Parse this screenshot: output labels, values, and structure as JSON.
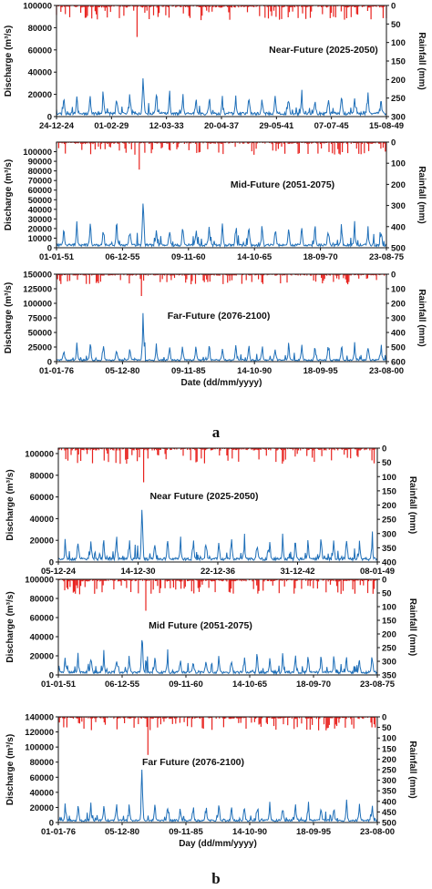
{
  "colors": {
    "discharge": "#1f6fb8",
    "rainfall": "#e8231f",
    "axis": "#111111"
  },
  "panel_labels": {
    "a": "a",
    "b": "b"
  },
  "chart_data": [
    {
      "type": "line",
      "group": "a",
      "title": "Near-Future (2025-2050)",
      "ylabel": "Discharge (m³/s)",
      "y2label": "Rainfall (mm)",
      "xlabel": "",
      "ylim": [
        0,
        100000
      ],
      "y_ticks": [
        0,
        20000,
        40000,
        60000,
        80000,
        100000
      ],
      "y2lim": [
        0,
        300
      ],
      "y2_ticks": [
        0,
        50,
        100,
        150,
        200,
        250,
        300
      ],
      "y2_inverted": true,
      "x_tick_labels": [
        "24-12-24",
        "01-02-29",
        "12-03-33",
        "20-04-37",
        "29-05-41",
        "07-07-45",
        "15-08-49"
      ],
      "peaks": {
        "discharge_peak": 47000,
        "rainfall_peak": 85
      },
      "series": [
        {
          "name": "Discharge",
          "axis": "left",
          "kind": "line",
          "color": "discharge",
          "n_years": 25,
          "seed": 11,
          "base_peak": 26000,
          "max_peak": 47000
        },
        {
          "name": "Rainfall",
          "axis": "right",
          "kind": "hyetograph",
          "color": "rainfall",
          "n_years": 25,
          "seed": 21,
          "base_peak": 40,
          "max_peak": 85
        }
      ]
    },
    {
      "type": "line",
      "group": "a",
      "title": "Mid-Future (2051-2075)",
      "ylabel": "Discharge (m³/s)",
      "y2label": "Rainfall (mm)",
      "xlabel": "",
      "ylim": [
        0,
        110000
      ],
      "y_ticks": [
        0,
        10000,
        20000,
        30000,
        40000,
        50000,
        60000,
        70000,
        80000,
        90000,
        100000
      ],
      "y2lim": [
        0,
        500
      ],
      "y2_ticks": [
        0,
        100,
        200,
        300,
        400,
        500
      ],
      "y2_inverted": true,
      "x_tick_labels": [
        "01-01-51",
        "06-12-55",
        "09-11-60",
        "14-10-65",
        "18-09-70",
        "23-08-75"
      ],
      "peaks": {
        "discharge_peak": 72000,
        "rainfall_peak": 130
      },
      "series": [
        {
          "name": "Discharge",
          "axis": "left",
          "kind": "line",
          "color": "discharge",
          "n_years": 25,
          "seed": 31,
          "base_peak": 34000,
          "max_peak": 72000
        },
        {
          "name": "Rainfall",
          "axis": "right",
          "kind": "hyetograph",
          "color": "rainfall",
          "n_years": 25,
          "seed": 41,
          "base_peak": 60,
          "max_peak": 130
        }
      ]
    },
    {
      "type": "line",
      "group": "a",
      "title": "Far-Future (2076-2100)",
      "ylabel": "Discharge (m³/s)",
      "y2label": "Rainfall (mm)",
      "xlabel": "Date (dd/mm/yyyy)",
      "ylim": [
        0,
        150000
      ],
      "y_ticks": [
        0,
        25000,
        50000,
        75000,
        100000,
        125000,
        150000
      ],
      "y2lim": [
        0,
        600
      ],
      "y2_ticks": [
        0,
        100,
        200,
        300,
        400,
        500,
        600
      ],
      "y2_inverted": true,
      "x_tick_labels": [
        "01-01-76",
        "05-12-80",
        "09-11-85",
        "14-10-90",
        "18-09-95",
        "23-08-00"
      ],
      "peaks": {
        "discharge_peak": 100000,
        "rainfall_peak": 150
      },
      "series": [
        {
          "name": "Discharge",
          "axis": "left",
          "kind": "line",
          "color": "discharge",
          "n_years": 25,
          "seed": 51,
          "base_peak": 40000,
          "max_peak": 100000
        },
        {
          "name": "Rainfall",
          "axis": "right",
          "kind": "hyetograph",
          "color": "rainfall",
          "n_years": 25,
          "seed": 61,
          "base_peak": 70,
          "max_peak": 150
        }
      ]
    },
    {
      "type": "line",
      "group": "b",
      "title": "Near Future (2025-2050)",
      "ylabel": "Discharge (m³/s)",
      "y2label": "Rainfall (mm)",
      "xlabel": "",
      "ylim": [
        0,
        105000
      ],
      "y_ticks": [
        0,
        20000,
        40000,
        60000,
        80000,
        100000
      ],
      "y2lim": [
        0,
        400
      ],
      "y2_ticks": [
        0,
        50,
        100,
        150,
        200,
        250,
        300,
        350,
        400
      ],
      "y2_inverted": true,
      "x_tick_labels": [
        "05-12-24",
        "14-12-30",
        "22-12-36",
        "31-12-42",
        "08-01-49"
      ],
      "peaks": {
        "discharge_peak": 67000,
        "rainfall_peak": 120
      },
      "series": [
        {
          "name": "Discharge",
          "axis": "left",
          "kind": "line",
          "color": "discharge",
          "n_years": 25,
          "seed": 71,
          "base_peak": 30000,
          "max_peak": 67000
        },
        {
          "name": "Rainfall",
          "axis": "right",
          "kind": "hyetograph",
          "color": "rainfall",
          "n_years": 25,
          "seed": 81,
          "base_peak": 55,
          "max_peak": 120
        }
      ]
    },
    {
      "type": "line",
      "group": "b",
      "title": "Mid Future (2051-2075)",
      "ylabel": "Discharge (m³/s)",
      "y2label": "Rainfall (mm)",
      "xlabel": "",
      "ylim": [
        0,
        100000
      ],
      "y_ticks": [
        0,
        20000,
        40000,
        60000,
        80000,
        100000
      ],
      "y2lim": [
        0,
        350
      ],
      "y2_ticks": [
        0,
        50,
        100,
        150,
        200,
        250,
        300,
        350
      ],
      "y2_inverted": true,
      "x_tick_labels": [
        "01-01-51",
        "06-12-55",
        "09-11-60",
        "14-10-65",
        "18-09-70",
        "23-08-75"
      ],
      "peaks": {
        "discharge_peak": 55000,
        "rainfall_peak": 115
      },
      "series": [
        {
          "name": "Discharge",
          "axis": "left",
          "kind": "line",
          "color": "discharge",
          "n_years": 25,
          "seed": 91,
          "base_peak": 28000,
          "max_peak": 55000
        },
        {
          "name": "Rainfall",
          "axis": "right",
          "kind": "hyetograph",
          "color": "rainfall",
          "n_years": 25,
          "seed": 101,
          "base_peak": 55,
          "max_peak": 115
        }
      ]
    },
    {
      "type": "line",
      "group": "b",
      "title": "Far Future (2076-2100)",
      "ylabel": "Discharge (m³/s)",
      "y2label": "Rainfall (mm)",
      "xlabel": "Day (dd/mm/yyyy)",
      "ylim": [
        0,
        140000
      ],
      "y_ticks": [
        0,
        20000,
        40000,
        60000,
        80000,
        100000,
        120000,
        140000
      ],
      "y2lim": [
        0,
        500
      ],
      "y2_ticks": [
        0,
        50,
        100,
        150,
        200,
        250,
        300,
        350,
        400,
        450,
        500
      ],
      "y2_inverted": true,
      "x_tick_labels": [
        "01-01-76",
        "05-12-80",
        "09-11-85",
        "14-10-90",
        "18-09-95",
        "23-08-00"
      ],
      "peaks": {
        "discharge_peak": 85000,
        "rainfall_peak": 180
      },
      "series": [
        {
          "name": "Discharge",
          "axis": "left",
          "kind": "line",
          "color": "discharge",
          "n_years": 25,
          "seed": 111,
          "base_peak": 34000,
          "max_peak": 85000
        },
        {
          "name": "Rainfall",
          "axis": "right",
          "kind": "hyetograph",
          "color": "rainfall",
          "n_years": 25,
          "seed": 121,
          "base_peak": 65,
          "max_peak": 180
        }
      ]
    }
  ]
}
